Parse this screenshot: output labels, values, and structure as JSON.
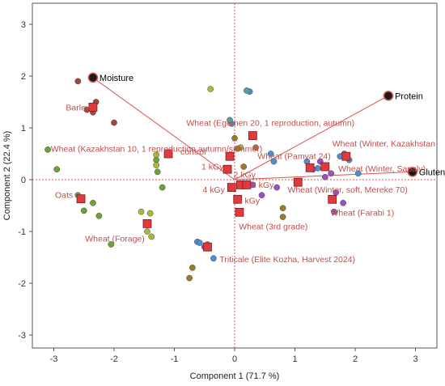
{
  "chart_data": {
    "type": "scatter",
    "title": "",
    "xlabel": "Component 1  (71.7 %)",
    "ylabel": "Component 2  (22.4 %)",
    "xlim": [
      -3.3,
      3.3
    ],
    "ylim": [
      -3.3,
      3.3
    ],
    "x_ticks": [
      -3,
      -2,
      -1,
      0,
      1,
      2,
      3
    ],
    "y_ticks": [
      -3,
      -2,
      -1,
      0,
      1,
      2,
      3
    ],
    "grid": false,
    "zero_lines": true,
    "loadings": [
      {
        "name": "Moisture",
        "x": -2.35,
        "y": 1.97
      },
      {
        "name": "Protein",
        "x": 2.55,
        "y": 1.62
      },
      {
        "name": "Gluten",
        "x": 2.95,
        "y": 0.15
      }
    ],
    "sample_labels": [
      {
        "text": "Barley",
        "x": -2.8,
        "y": 1.4
      },
      {
        "text": "Wheat (Egemen 20, 1 reproduction, autumn)",
        "x": -0.8,
        "y": 1.1
      },
      {
        "text": "Wheat (Kazakhstan 10, 1 reproduction autumn/summer)",
        "x": -3.05,
        "y": 0.6
      },
      {
        "text": "control",
        "x": -0.9,
        "y": 0.55
      },
      {
        "text": "Wheat (Pamyat 24)",
        "x": 0.38,
        "y": 0.46
      },
      {
        "text": "Wheat (Winter, Kazakhstan",
        "x": 1.62,
        "y": 0.7
      },
      {
        "text": "Wheat (Winter, Sapaly)",
        "x": 1.72,
        "y": 0.22
      },
      {
        "text": "1 kGy",
        "x": -0.55,
        "y": 0.26
      },
      {
        "text": "2 kGy",
        "x": -0.02,
        "y": 0.1
      },
      {
        "text": "3 kGy",
        "x": 0.28,
        "y": -0.09
      },
      {
        "text": "4 kGy",
        "x": -0.53,
        "y": -0.19
      },
      {
        "text": "5 kGy",
        "x": 0.05,
        "y": -0.4
      },
      {
        "text": "Wheat (Winter, soft, Mereke 70)",
        "x": 0.88,
        "y": -0.19
      },
      {
        "text": "Oats",
        "x": -2.98,
        "y": -0.29
      },
      {
        "text": "Wheat (Farabi 1)",
        "x": 1.59,
        "y": -0.63
      },
      {
        "text": "Wheat (3rd grade)",
        "x": 0.07,
        "y": -0.9
      },
      {
        "text": "Wheat (Forage)",
        "x": -2.48,
        "y": -1.13
      },
      {
        "text": "Triticale (Elite Kozha, Harvest 2024)",
        "x": -0.25,
        "y": -1.53
      }
    ],
    "centroids": [
      {
        "x": -2.35,
        "y": 1.4
      },
      {
        "x": -2.55,
        "y": -0.37
      },
      {
        "x": -1.45,
        "y": -0.85
      },
      {
        "x": -1.1,
        "y": 0.5
      },
      {
        "x": 0.3,
        "y": 0.85
      },
      {
        "x": -0.08,
        "y": 0.45
      },
      {
        "x": -0.12,
        "y": 0.2
      },
      {
        "x": 0.1,
        "y": -0.1
      },
      {
        "x": 0.2,
        "y": -0.1
      },
      {
        "x": -0.05,
        "y": -0.15
      },
      {
        "x": 0.05,
        "y": -0.38
      },
      {
        "x": 0.08,
        "y": -0.63
      },
      {
        "x": 1.05,
        "y": -0.05
      },
      {
        "x": 1.25,
        "y": 0.23
      },
      {
        "x": 1.5,
        "y": 0.25
      },
      {
        "x": 1.85,
        "y": 0.45
      },
      {
        "x": 1.62,
        "y": -0.38
      },
      {
        "x": -0.45,
        "y": -1.3
      }
    ],
    "groups": [
      {
        "color": "#a0473e",
        "points": [
          [
            -2.6,
            1.9
          ],
          [
            -2.3,
            1.5
          ],
          [
            -2.45,
            1.35
          ],
          [
            -2.0,
            1.1
          ],
          [
            -2.35,
            1.3
          ]
        ]
      },
      {
        "color": "#6aa339",
        "points": [
          [
            -3.1,
            0.58
          ],
          [
            -2.95,
            0.2
          ],
          [
            -2.6,
            -0.3
          ],
          [
            -2.5,
            -0.6
          ],
          [
            -2.35,
            -0.45
          ],
          [
            -2.25,
            -0.7
          ],
          [
            -2.05,
            -1.25
          ],
          [
            -1.2,
            -0.15
          ],
          [
            -1.3,
            0.38
          ],
          [
            -1.28,
            0.15
          ]
        ]
      },
      {
        "color": "#a9b83a",
        "points": [
          [
            -1.55,
            -0.62
          ],
          [
            -1.4,
            -0.65
          ],
          [
            -1.45,
            -1.0
          ],
          [
            -1.38,
            -1.1
          ],
          [
            -1.3,
            0.48
          ],
          [
            -1.3,
            0.28
          ],
          [
            -0.4,
            1.75
          ],
          [
            0.1,
            0.62
          ]
        ]
      },
      {
        "color": "#4f8fd0",
        "points": [
          [
            -0.62,
            -1.2
          ],
          [
            -0.58,
            -1.22
          ],
          [
            -0.45,
            -1.25
          ],
          [
            -0.35,
            -1.52
          ],
          [
            0.25,
            1.7
          ],
          [
            -0.05,
            1.08
          ],
          [
            0.6,
            0.5
          ],
          [
            0.65,
            0.35
          ],
          [
            1.2,
            0.35
          ],
          [
            1.38,
            0.22
          ],
          [
            1.75,
            0.45
          ],
          [
            1.82,
            0.5
          ],
          [
            1.9,
            0.38
          ],
          [
            2.05,
            0.12
          ]
        ]
      },
      {
        "color": "#9b4fc1",
        "points": [
          [
            1.3,
            0.2
          ],
          [
            1.42,
            0.35
          ],
          [
            1.6,
            0.12
          ],
          [
            1.5,
            0.05
          ],
          [
            1.68,
            -0.25
          ],
          [
            1.8,
            -0.45
          ],
          [
            1.65,
            -0.62
          ],
          [
            0.45,
            -0.3
          ],
          [
            0.7,
            -0.15
          ],
          [
            0.3,
            -0.1
          ],
          [
            -0.5,
            -1.3
          ]
        ]
      },
      {
        "color": "#9c7a2a",
        "points": [
          [
            -0.75,
            -1.9
          ],
          [
            -0.7,
            -1.7
          ],
          [
            0.8,
            -0.55
          ],
          [
            0.8,
            -0.72
          ],
          [
            0.15,
            0.25
          ],
          [
            0.05,
            0.6
          ],
          [
            0.35,
            0.62
          ],
          [
            0.0,
            0.8
          ]
        ]
      },
      {
        "color": "#48a8a0",
        "points": [
          [
            0.2,
            1.72
          ],
          [
            -0.08,
            1.15
          ]
        ]
      }
    ]
  }
}
